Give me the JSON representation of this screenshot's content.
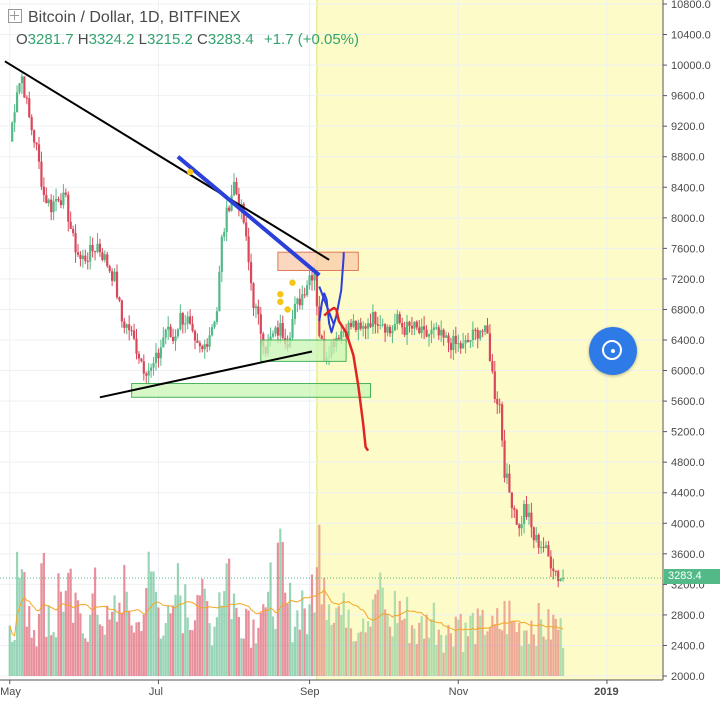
{
  "header": {
    "title": "Bitcoin / Dollar, 1D, BITFINEX",
    "open_label": "O",
    "open": "3281.7",
    "high_label": "H",
    "high": "3324.2",
    "low_label": "L",
    "low": "3215.2",
    "close_label": "C",
    "close": "3283.4",
    "change": "+1.7 (+0.05%)"
  },
  "price_tag": "3283.4",
  "colors": {
    "up": "#53b987",
    "down": "#d9485a",
    "forecast_band": "#fdfcc9",
    "trendline": "#000000",
    "blue_drawing": "#2b3fd9",
    "red_drawing": "#e32522",
    "volume_ma": "#f5a623",
    "fab": "#2e7ae6"
  },
  "icons": [
    "crosshair-icon",
    "target-icon"
  ],
  "chart_data": {
    "type": "candlestick",
    "symbol": "Bitcoin / Dollar",
    "interval": "1D",
    "exchange": "BITFINEX",
    "y_axis_labels": [
      "10800.0",
      "10400.0",
      "10000.0",
      "9600.0",
      "9200.0",
      "8800.0",
      "8400.0",
      "8000.0",
      "7600.0",
      "7200.0",
      "6800.0",
      "6400.0",
      "6000.0",
      "5600.0",
      "5200.0",
      "4800.0",
      "4400.0",
      "4000.0",
      "3600.0",
      "3200.0",
      "2800.0",
      "2400.0",
      "2000.0"
    ],
    "ylim": [
      1970,
      10870
    ],
    "x_axis_labels": [
      "May",
      "Jul",
      "Sep",
      "Nov",
      "2019"
    ],
    "x_tick_days": [
      0,
      61,
      123,
      184,
      245
    ],
    "x_range_days": [
      -4,
      268
    ],
    "forecast_start_day": 126,
    "close_price_points": [
      [
        0,
        9000
      ],
      [
        3,
        9700
      ],
      [
        5,
        9850
      ],
      [
        8,
        9300
      ],
      [
        11,
        8900
      ],
      [
        14,
        8300
      ],
      [
        17,
        8150
      ],
      [
        20,
        8300
      ],
      [
        23,
        8200
      ],
      [
        26,
        7700
      ],
      [
        29,
        7450
      ],
      [
        32,
        7500
      ],
      [
        36,
        7650
      ],
      [
        40,
        7400
      ],
      [
        43,
        7200
      ],
      [
        46,
        6650
      ],
      [
        49,
        6550
      ],
      [
        52,
        6300
      ],
      [
        55,
        6050
      ],
      [
        58,
        6000
      ],
      [
        61,
        6200
      ],
      [
        64,
        6550
      ],
      [
        67,
        6400
      ],
      [
        70,
        6700
      ],
      [
        73,
        6650
      ],
      [
        76,
        6300
      ],
      [
        79,
        6250
      ],
      [
        82,
        6500
      ],
      [
        85,
        6800
      ],
      [
        87,
        7700
      ],
      [
        90,
        8200
      ],
      [
        92,
        8450
      ],
      [
        94,
        8200
      ],
      [
        96,
        7950
      ],
      [
        98,
        7400
      ],
      [
        100,
        6900
      ],
      [
        102,
        6650
      ],
      [
        105,
        6300
      ],
      [
        108,
        6450
      ],
      [
        111,
        6550
      ],
      [
        114,
        6400
      ],
      [
        117,
        6800
      ],
      [
        120,
        7000
      ],
      [
        123,
        7250
      ],
      [
        125,
        7300
      ],
      [
        127,
        6500
      ],
      [
        129,
        6200
      ],
      [
        132,
        6350
      ],
      [
        135,
        6500
      ],
      [
        138,
        6550
      ],
      [
        141,
        6600
      ],
      [
        144,
        6500
      ],
      [
        147,
        6650
      ],
      [
        150,
        6700
      ],
      [
        153,
        6650
      ],
      [
        156,
        6500
      ],
      [
        159,
        6650
      ],
      [
        162,
        6550
      ],
      [
        166,
        6550
      ],
      [
        170,
        6450
      ],
      [
        174,
        6500
      ],
      [
        178,
        6400
      ],
      [
        182,
        6350
      ],
      [
        186,
        6300
      ],
      [
        190,
        6450
      ],
      [
        193,
        6550
      ],
      [
        196,
        6450
      ],
      [
        199,
        5700
      ],
      [
        201,
        5550
      ],
      [
        203,
        4700
      ],
      [
        205,
        4400
      ],
      [
        207,
        4200
      ],
      [
        209,
        3900
      ],
      [
        211,
        4200
      ],
      [
        213,
        4050
      ],
      [
        215,
        3800
      ],
      [
        217,
        3750
      ],
      [
        219,
        3700
      ],
      [
        221,
        3550
      ],
      [
        223,
        3450
      ],
      [
        225,
        3300
      ],
      [
        227,
        3280
      ]
    ],
    "volume_relative": [
      0.35,
      0.6,
      0.45,
      0.3,
      0.55,
      0.4,
      0.3,
      0.5,
      0.45,
      0.35,
      0.4,
      0.3,
      0.45,
      0.35,
      0.3,
      0.4,
      0.55,
      0.35,
      0.3,
      0.4,
      0.6,
      0.45,
      0.35,
      0.3,
      0.5,
      0.4,
      0.35,
      0.55,
      0.4,
      0.3,
      0.5,
      0.65,
      0.45,
      0.35,
      0.4,
      0.3,
      0.45,
      0.35,
      0.5,
      0.6,
      0.4,
      0.35,
      0.45,
      0.3,
      0.55,
      0.75,
      0.5,
      0.4,
      0.35,
      0.45,
      0.3,
      0.4,
      0.35,
      0.5,
      0.45,
      0.3,
      0.4,
      0.35,
      0.3,
      0.25,
      0.3,
      0.35,
      0.3,
      0.25,
      0.3,
      0.35,
      0.25,
      0.3,
      0.28,
      0.32,
      0.26,
      0.3,
      0.35,
      0.3,
      0.28,
      0.3,
      0.32,
      0.3,
      0.28,
      0.3,
      0.26
    ],
    "annotations": {
      "descending_trendline": [
        [
          -2,
          10050
        ],
        [
          131,
          7450
        ]
      ],
      "ascending_trendline": [
        [
          37,
          5650
        ],
        [
          124,
          6250
        ]
      ],
      "blue_trendline": [
        [
          69,
          8800
        ],
        [
          127,
          7250
        ]
      ],
      "blue_line_2": [
        [
          127,
          7100
        ],
        [
          133,
          6600
        ]
      ],
      "boxes": [
        {
          "days": [
            110,
            143
          ],
          "prices": [
            7310,
            7550
          ],
          "fill": "#f8c9a8",
          "stroke": "#e07b5a"
        },
        {
          "days": [
            103,
            138
          ],
          "prices": [
            6120,
            6400
          ],
          "fill": "#c8f5b4",
          "stroke": "#46b35a"
        },
        {
          "days": [
            50,
            148
          ],
          "prices": [
            5650,
            5830
          ],
          "fill": "#c8f5b4",
          "stroke": "#46b35a"
        }
      ],
      "red_forecast_path": [
        [
          129,
          6720
        ],
        [
          131,
          6780
        ],
        [
          133,
          6820
        ],
        [
          134,
          6800
        ],
        [
          135,
          6650
        ],
        [
          138,
          6500
        ],
        [
          141,
          6200
        ],
        [
          143,
          5800
        ],
        [
          145,
          5300
        ],
        [
          146,
          5000
        ],
        [
          147,
          4950
        ]
      ],
      "blue_scribble": [
        [
          127,
          6650
        ],
        [
          128,
          6880
        ],
        [
          129,
          7010
        ],
        [
          130,
          6930
        ],
        [
          131,
          6620
        ],
        [
          132,
          6500
        ],
        [
          134,
          6720
        ],
        [
          136,
          7050
        ],
        [
          137,
          7500
        ],
        [
          137,
          7550
        ]
      ],
      "markers": [
        [
          74,
          8600
        ],
        [
          116,
          7150
        ],
        [
          111,
          7000
        ],
        [
          111,
          6900
        ],
        [
          114,
          6800
        ]
      ]
    }
  }
}
